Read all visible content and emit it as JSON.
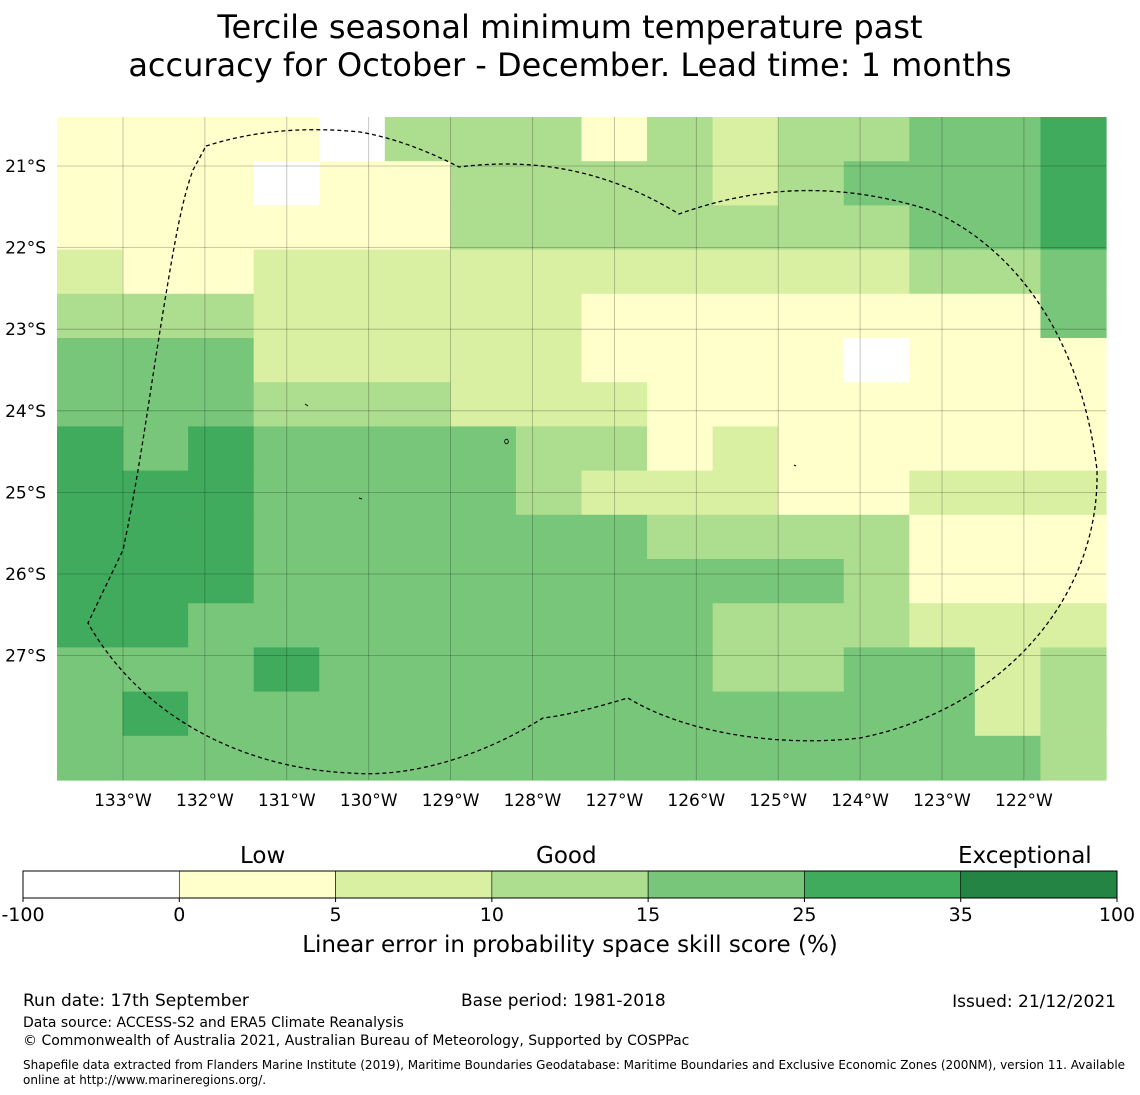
{
  "title_line1": "Tercile seasonal minimum temperature past",
  "title_line2": "accuracy for October - December. Lead time: 1 months",
  "map": {
    "lon_labels": [
      "133°W",
      "132°W",
      "131°W",
      "130°W",
      "129°W",
      "128°W",
      "127°W",
      "126°W",
      "125°W",
      "124°W",
      "123°W",
      "122°W"
    ],
    "lat_labels": [
      "21°S",
      "22°S",
      "23°S",
      "24°S",
      "25°S",
      "26°S",
      "27°S"
    ],
    "grid": {
      "columns": 16,
      "rows": 15,
      "cell_categories": [
        "1111233333233445",
        "1110113333234445",
        "1111113333333445",
        "2112222222222334",
        "3332222211111114",
        "4442222211111111",
        "4443332221111111",
        "5454444332211111",
        "5554444322211222",
        "5554444443333111",
        "5554444444443111",
        "5544444444333222",
        "4445444444334423",
        "4544444444444423",
        "4444444444444443"
      ],
      "cell_overrides": [
        {
          "row": 0,
          "col": 4,
          "cat": 0
        },
        {
          "row": 0,
          "col": 8,
          "cat": 1
        },
        {
          "row": 5,
          "col": 12,
          "cat": 0
        },
        {
          "row": 7,
          "col": 9,
          "cat": 1
        }
      ]
    }
  },
  "colorbar": {
    "bins": [
      {
        "color": "#ffffff"
      },
      {
        "color": "#ffffcc"
      },
      {
        "color": "#d9f0a3"
      },
      {
        "color": "#addd8e"
      },
      {
        "color": "#78c679"
      },
      {
        "color": "#41ab5d"
      },
      {
        "color": "#238443"
      }
    ],
    "ticks": [
      "-100",
      "0",
      "5",
      "10",
      "15",
      "25",
      "35",
      "100"
    ],
    "words": [
      "Low",
      "Good",
      "Exceptional"
    ],
    "label": "Linear error in probability space skill score (%)"
  },
  "footer": {
    "run_date": "Run date: 17th September",
    "base_period": "Base period: 1981-2018",
    "issued": "Issued: 21/12/2021",
    "data_source": "Data source: ACCESS-S2 and ERA5 Climate Reanalysis",
    "copyright": "© Commonwealth of Australia 2021, Australian Bureau of Meteorology, Supported by COSPPac",
    "shapefile_line1": "Shapefile data extracted from Flanders Marine Institute (2019), Maritime Boundaries Geodatabase: Maritime Boundaries and Exclusive Economic Zones (200NM), version 11. Available",
    "shapefile_line2": "online at http://www.marineregions.org/."
  }
}
